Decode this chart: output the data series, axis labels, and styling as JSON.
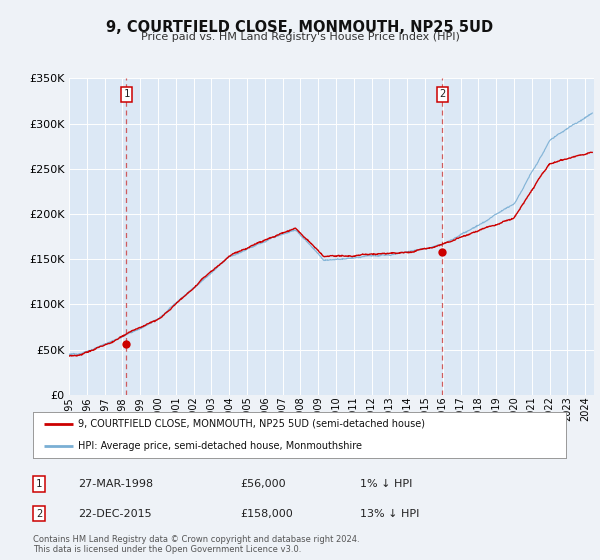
{
  "title": "9, COURTFIELD CLOSE, MONMOUTH, NP25 5UD",
  "subtitle": "Price paid vs. HM Land Registry's House Price Index (HPI)",
  "background_color": "#eef2f7",
  "plot_bg_color": "#dce8f5",
  "grid_color": "#ffffff",
  "hpi_color": "#7aafd4",
  "price_color": "#cc0000",
  "ylim": [
    0,
    350000
  ],
  "yticks": [
    0,
    50000,
    100000,
    150000,
    200000,
    250000,
    300000,
    350000
  ],
  "ytick_labels": [
    "£0",
    "£50K",
    "£100K",
    "£150K",
    "£200K",
    "£250K",
    "£300K",
    "£350K"
  ],
  "xlim_start": 1995.0,
  "xlim_end": 2024.5,
  "sale1_x": 1998.23,
  "sale1_y": 56000,
  "sale1_label": "1",
  "sale1_date": "27-MAR-1998",
  "sale1_price": "£56,000",
  "sale1_hpi": "1% ↓ HPI",
  "sale2_x": 2015.98,
  "sale2_y": 158000,
  "sale2_label": "2",
  "sale2_date": "22-DEC-2015",
  "sale2_price": "£158,000",
  "sale2_hpi": "13% ↓ HPI",
  "vline1_x": 1998.23,
  "vline2_x": 2015.98,
  "legend_line1": "9, COURTFIELD CLOSE, MONMOUTH, NP25 5UD (semi-detached house)",
  "legend_line2": "HPI: Average price, semi-detached house, Monmouthshire",
  "footer1": "Contains HM Land Registry data © Crown copyright and database right 2024.",
  "footer2": "This data is licensed under the Open Government Licence v3.0."
}
